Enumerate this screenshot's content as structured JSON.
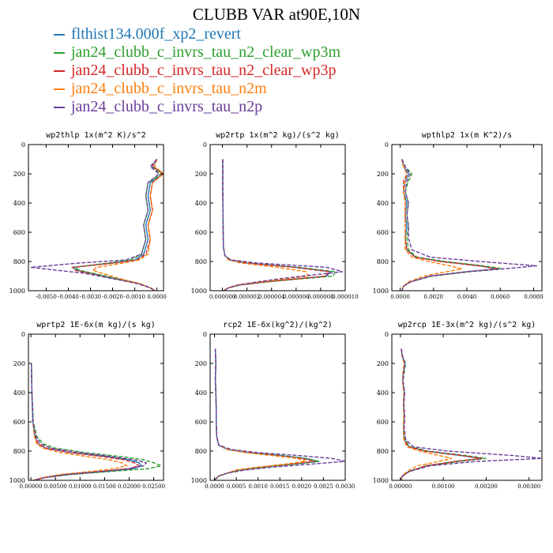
{
  "figure_title": "CLUBB VAR at90E,10N",
  "legend": [
    {
      "label": "flthist134.000f_xp2_revert",
      "color": "#1f77b4"
    },
    {
      "label": "jan24_clubb_c_invrs_tau_n2_clear_wp3m",
      "color": "#2ca02c"
    },
    {
      "label": "jan24_clubb_c_invrs_tau_n2_clear_wp3p",
      "color": "#d62728"
    },
    {
      "label": "jan24_clubb_c_invrs_tau_n2m",
      "color": "#ff7f0e"
    },
    {
      "label": "jan24_clubb_c_invrs_tau_n2p",
      "color": "#6a3d9a"
    }
  ],
  "chart_data": [
    {
      "type": "line",
      "title": "wp2thlp  1x(m^2 K)/s^2",
      "ylim": [
        0,
        1000
      ],
      "y_inverted": true,
      "xlim": [
        -0.0058,
        0.0003
      ],
      "x_ticks": [
        "-0.0050",
        "-0.0040",
        "-0.0030",
        "-0.0020",
        "-0.0010",
        "0.0000"
      ],
      "x_tick_values": [
        -0.005,
        -0.004,
        -0.003,
        -0.002,
        -0.001,
        0.0
      ],
      "y_ticks": [
        "0",
        "200",
        "400",
        "600",
        "800",
        "1000"
      ],
      "y": [
        100,
        150,
        200,
        260,
        350,
        450,
        550,
        650,
        750,
        790,
        810,
        840,
        860,
        880,
        920,
        950,
        980,
        1000
      ],
      "series": [
        {
          "name": "flthist134.000f_xp2_revert",
          "x": [
            0.0,
            -0.0002,
            0.0003,
            -0.0003,
            -0.0004,
            -0.0003,
            -0.0005,
            -0.0004,
            -0.0006,
            -0.001,
            -0.002,
            -0.0038,
            -0.0036,
            -0.003,
            -0.0018,
            -0.0008,
            -0.0003,
            -0.0001
          ]
        },
        {
          "name": "jan24_clubb_c_invrs_tau_n2_clear_wp3m",
          "x": [
            0.0,
            -0.0003,
            0.0002,
            -0.0004,
            -0.0005,
            -0.0004,
            -0.0006,
            -0.0005,
            -0.0007,
            -0.0012,
            -0.0022,
            -0.0037,
            -0.0035,
            -0.0029,
            -0.0017,
            -0.0008,
            -0.0003,
            -0.0001
          ]
        },
        {
          "name": "jan24_clubb_c_invrs_tau_n2_clear_wp3p",
          "x": [
            0.0,
            -0.0002,
            0.0003,
            -0.0002,
            -0.0003,
            -0.0002,
            -0.0004,
            -0.0003,
            -0.0005,
            -0.0009,
            -0.0019,
            -0.0038,
            -0.0037,
            -0.0031,
            -0.0019,
            -0.0009,
            -0.0003,
            -0.0001
          ]
        },
        {
          "name": "jan24_clubb_c_invrs_tau_n2m",
          "x": [
            0.0,
            -0.0001,
            0.0003,
            -0.0002,
            -0.0003,
            -0.0002,
            -0.0004,
            -0.0003,
            -0.0004,
            -0.0008,
            -0.0015,
            -0.0027,
            -0.0029,
            -0.0025,
            -0.0016,
            -0.0008,
            -0.0003,
            -0.0001
          ]
        },
        {
          "name": "jan24_clubb_c_invrs_tau_n2p",
          "x": [
            0.0,
            -0.0003,
            0.0001,
            -0.0004,
            -0.0005,
            -0.0004,
            -0.0006,
            -0.0005,
            -0.0007,
            -0.0014,
            -0.0035,
            -0.0057,
            -0.0045,
            -0.0033,
            -0.0019,
            -0.0009,
            -0.0003,
            -0.0001
          ]
        }
      ]
    },
    {
      "type": "line",
      "title": "wp2rtp  1x(m^2 kg)/(s^2 kg)",
      "ylim": [
        0,
        1000
      ],
      "y_inverted": true,
      "xlim": [
        -1e-06,
        1e-05
      ],
      "x_ticks": [
        "0.000000",
        "0.000002",
        "0.000004",
        "0.000006",
        "0.000008",
        "0.000010"
      ],
      "x_tick_values": [
        0.0,
        2e-06,
        4e-06,
        6e-06,
        8e-06,
        1e-05
      ],
      "y_ticks": [
        "0",
        "200",
        "400",
        "600",
        "800",
        "1000"
      ],
      "y": [
        100,
        200,
        300,
        400,
        500,
        600,
        700,
        760,
        790,
        810,
        840,
        870,
        900,
        920,
        940,
        960,
        980,
        1000
      ],
      "series": [
        {
          "name": "flthist134.000f_xp2_revert",
          "x": [
            2e-08,
            3e-08,
            2e-08,
            4e-08,
            5e-08,
            6e-08,
            8e-08,
            2e-07,
            6e-07,
            2e-06,
            6e-06,
            8.8e-06,
            8.5e-06,
            6e-06,
            3.5e-06,
            1.5e-06,
            5e-07,
            1e-07
          ]
        },
        {
          "name": "jan24_clubb_c_invrs_tau_n2_clear_wp3m",
          "x": [
            2e-08,
            3e-08,
            2e-08,
            4e-08,
            5e-08,
            6e-08,
            8e-08,
            2e-07,
            6e-07,
            2e-06,
            6.2e-06,
            9.2e-06,
            9e-06,
            6.2e-06,
            3.6e-06,
            1.5e-06,
            5e-07,
            1e-07
          ]
        },
        {
          "name": "jan24_clubb_c_invrs_tau_n2_clear_wp3p",
          "x": [
            2e-08,
            3e-08,
            2e-08,
            4e-08,
            5e-08,
            6e-08,
            8e-08,
            2e-07,
            6e-07,
            2e-06,
            5.8e-06,
            8.7e-06,
            8.4e-06,
            5.9e-06,
            3.4e-06,
            1.4e-06,
            5e-07,
            1e-07
          ]
        },
        {
          "name": "jan24_clubb_c_invrs_tau_n2m",
          "x": [
            2e-08,
            3e-08,
            2e-08,
            4e-08,
            5e-08,
            6e-08,
            8e-08,
            2e-07,
            5e-07,
            1.5e-06,
            4.5e-06,
            6.8e-06,
            7e-06,
            5e-06,
            3e-06,
            1.3e-06,
            5e-07,
            1e-07
          ]
        },
        {
          "name": "jan24_clubb_c_invrs_tau_n2p",
          "x": [
            2e-08,
            3e-08,
            2e-08,
            4e-08,
            5e-08,
            6e-08,
            8e-08,
            2e-07,
            7e-07,
            2.8e-06,
            8.5e-06,
            9.8e-06,
            6.5e-06,
            4.5e-06,
            2.8e-06,
            1.3e-06,
            5e-07,
            1e-07
          ]
        }
      ]
    },
    {
      "type": "line",
      "title": "wpthlp2  1x(m K^2)/s",
      "ylim": [
        0,
        1000
      ],
      "y_inverted": true,
      "xlim": [
        -0.0005,
        0.0085
      ],
      "x_ticks": [
        "0.0000",
        "0.0020",
        "0.0040",
        "0.0060",
        "0.0080"
      ],
      "x_tick_values": [
        0.0,
        0.002,
        0.004,
        0.006,
        0.008
      ],
      "y_ticks": [
        "0",
        "200",
        "400",
        "600",
        "800",
        "1000"
      ],
      "y": [
        100,
        150,
        200,
        250,
        320,
        400,
        480,
        560,
        640,
        720,
        770,
        800,
        830,
        850,
        870,
        900,
        940,
        970,
        1000
      ],
      "series": [
        {
          "name": "flthist134.000f_xp2_revert",
          "x": [
            0.0001,
            0.0002,
            0.0005,
            0.0003,
            0.0002,
            0.0004,
            0.0003,
            0.0004,
            0.0003,
            0.0004,
            0.0009,
            0.0025,
            0.0048,
            0.0058,
            0.004,
            0.0018,
            0.0006,
            0.0002,
            0.0001
          ]
        },
        {
          "name": "jan24_clubb_c_invrs_tau_n2_clear_wp3m",
          "x": [
            0.0001,
            0.0003,
            0.0007,
            0.0005,
            0.0003,
            0.0005,
            0.0004,
            0.0005,
            0.0004,
            0.0005,
            0.001,
            0.0027,
            0.005,
            0.0062,
            0.0042,
            0.0019,
            0.0006,
            0.0002,
            0.0001
          ]
        },
        {
          "name": "jan24_clubb_c_invrs_tau_n2_clear_wp3p",
          "x": [
            0.0001,
            0.0002,
            0.0004,
            0.0002,
            0.0002,
            0.0003,
            0.0003,
            0.0003,
            0.0003,
            0.0004,
            0.0009,
            0.0024,
            0.0047,
            0.0059,
            0.004,
            0.0018,
            0.0006,
            0.0002,
            0.0001
          ]
        },
        {
          "name": "jan24_clubb_c_invrs_tau_n2m",
          "x": [
            0.0001,
            0.0002,
            0.0004,
            0.0003,
            0.0002,
            0.0003,
            0.0003,
            0.0003,
            0.0003,
            0.0003,
            0.0007,
            0.0017,
            0.003,
            0.0037,
            0.0028,
            0.0014,
            0.0005,
            0.0002,
            0.0001
          ]
        },
        {
          "name": "jan24_clubb_c_invrs_tau_n2p",
          "x": [
            0.0001,
            0.0003,
            0.0006,
            0.0004,
            0.0003,
            0.0005,
            0.0004,
            0.0005,
            0.0005,
            0.0007,
            0.0018,
            0.0048,
            0.0082,
            0.0062,
            0.004,
            0.0018,
            0.0006,
            0.0002,
            0.0001
          ]
        }
      ]
    },
    {
      "type": "line",
      "title": "wprtp2  1E-6x(m kg)/(s kg)",
      "ylim": [
        0,
        1000
      ],
      "y_inverted": true,
      "xlim": [
        -0.0005,
        0.027
      ],
      "x_ticks": [
        "0.00000",
        "0.00500",
        "0.01000",
        "0.01500",
        "0.02000",
        "0.02500"
      ],
      "x_tick_values": [
        0.0,
        0.005,
        0.01,
        0.015,
        0.02,
        0.025
      ],
      "y_ticks": [
        "0",
        "200",
        "400",
        "600",
        "800",
        "1000"
      ],
      "y": [
        200,
        400,
        600,
        700,
        750,
        780,
        810,
        840,
        860,
        880,
        900,
        920,
        940,
        960,
        980,
        1000
      ],
      "series": [
        {
          "name": "flthist134.000f_xp2_revert",
          "x": [
            0.0001,
            0.0002,
            0.0004,
            0.0008,
            0.0015,
            0.003,
            0.008,
            0.016,
            0.02,
            0.022,
            0.0225,
            0.021,
            0.015,
            0.008,
            0.003,
            0.0005
          ]
        },
        {
          "name": "jan24_clubb_c_invrs_tau_n2_clear_wp3m",
          "x": [
            0.0001,
            0.0002,
            0.0005,
            0.0012,
            0.0025,
            0.005,
            0.011,
            0.019,
            0.023,
            0.025,
            0.0265,
            0.024,
            0.016,
            0.008,
            0.003,
            0.0005
          ]
        },
        {
          "name": "jan24_clubb_c_invrs_tau_n2_clear_wp3p",
          "x": [
            0.0001,
            0.0002,
            0.0004,
            0.0008,
            0.0015,
            0.003,
            0.008,
            0.015,
            0.019,
            0.021,
            0.022,
            0.02,
            0.014,
            0.007,
            0.003,
            0.0005
          ]
        },
        {
          "name": "jan24_clubb_c_invrs_tau_n2m",
          "x": [
            0.0001,
            0.0002,
            0.0004,
            0.0007,
            0.0012,
            0.0025,
            0.006,
            0.012,
            0.016,
            0.0185,
            0.0195,
            0.017,
            0.012,
            0.006,
            0.0025,
            0.0005
          ]
        },
        {
          "name": "jan24_clubb_c_invrs_tau_n2p",
          "x": [
            0.0001,
            0.0002,
            0.0004,
            0.001,
            0.002,
            0.004,
            0.01,
            0.017,
            0.021,
            0.0235,
            0.023,
            0.02,
            0.014,
            0.007,
            0.003,
            0.0005
          ]
        }
      ]
    },
    {
      "type": "line",
      "title": "rcp2  1E-6x(kg^2)/(kg^2)",
      "ylim": [
        0,
        1000
      ],
      "y_inverted": true,
      "xlim": [
        -0.0001,
        0.003
      ],
      "x_ticks": [
        "0.0000",
        "0.0005",
        "0.0010",
        "0.0015",
        "0.0020",
        "0.0025",
        "0.0030"
      ],
      "x_tick_values": [
        0.0,
        0.0005,
        0.001,
        0.0015,
        0.002,
        0.0025,
        0.003
      ],
      "y_ticks": [
        "0",
        "200",
        "400",
        "600",
        "800",
        "1000"
      ],
      "y": [
        100,
        200,
        300,
        400,
        500,
        600,
        700,
        760,
        790,
        810,
        830,
        850,
        870,
        890,
        910,
        930,
        950,
        970,
        990,
        1000
      ],
      "series": [
        {
          "name": "flthist134.000f_xp2_revert",
          "x": [
            2e-05,
            3e-05,
            2e-05,
            3e-05,
            4e-05,
            4e-05,
            5e-05,
            0.0001,
            0.0003,
            0.0008,
            0.0015,
            0.0021,
            0.0024,
            0.0018,
            0.0011,
            0.0006,
            0.0003,
            0.0001,
            3e-05,
            1e-05
          ]
        },
        {
          "name": "jan24_clubb_c_invrs_tau_n2_clear_wp3m",
          "x": [
            2e-05,
            3e-05,
            2e-05,
            3e-05,
            4e-05,
            4e-05,
            5e-05,
            0.0001,
            0.0003,
            0.0008,
            0.0015,
            0.0021,
            0.0024,
            0.0018,
            0.0011,
            0.0006,
            0.0003,
            0.0001,
            3e-05,
            1e-05
          ]
        },
        {
          "name": "jan24_clubb_c_invrs_tau_n2_clear_wp3p",
          "x": [
            2e-05,
            3e-05,
            2e-05,
            3e-05,
            4e-05,
            4e-05,
            5e-05,
            0.0001,
            0.0003,
            0.0008,
            0.0014,
            0.002,
            0.0023,
            0.0017,
            0.001,
            0.0005,
            0.0003,
            0.0001,
            3e-05,
            1e-05
          ]
        },
        {
          "name": "jan24_clubb_c_invrs_tau_n2m",
          "x": [
            2e-05,
            3e-05,
            2e-05,
            3e-05,
            4e-05,
            4e-05,
            5e-05,
            0.0001,
            0.0003,
            0.0007,
            0.0013,
            0.0019,
            0.0021,
            0.0016,
            0.001,
            0.0005,
            0.0003,
            0.0001,
            3e-05,
            1e-05
          ]
        },
        {
          "name": "jan24_clubb_c_invrs_tau_n2p",
          "x": [
            2e-05,
            3e-05,
            2e-05,
            3e-05,
            4e-05,
            4e-05,
            5e-05,
            0.0001,
            0.0004,
            0.001,
            0.0019,
            0.0027,
            0.003,
            0.0022,
            0.0013,
            0.0007,
            0.0003,
            0.0001,
            3e-05,
            1e-05
          ]
        }
      ]
    },
    {
      "type": "line",
      "title": "wp2rcp  1E-3x(m^2 kg)/(s^2 kg)",
      "ylim": [
        0,
        1000
      ],
      "y_inverted": true,
      "xlim": [
        -0.0002,
        0.0033
      ],
      "x_ticks": [
        "0.00000",
        "0.00100",
        "0.00200",
        "0.00300"
      ],
      "x_tick_values": [
        0.0,
        0.001,
        0.002,
        0.003
      ],
      "y_ticks": [
        "0",
        "200",
        "400",
        "600",
        "800",
        "1000"
      ],
      "y": [
        100,
        150,
        200,
        260,
        320,
        400,
        480,
        560,
        640,
        720,
        770,
        800,
        830,
        850,
        870,
        900,
        940,
        970,
        1000
      ],
      "series": [
        {
          "name": "flthist134.000f_xp2_revert",
          "x": [
            2e-05,
            4e-05,
            0.0001,
            7e-05,
            5e-05,
            9e-05,
            7e-05,
            9e-05,
            7e-05,
            9e-05,
            0.0002,
            0.0006,
            0.0014,
            0.0019,
            0.0013,
            0.0006,
            0.0002,
            5e-05,
            1e-05
          ]
        },
        {
          "name": "jan24_clubb_c_invrs_tau_n2_clear_wp3m",
          "x": [
            2e-05,
            5e-05,
            0.00012,
            9e-05,
            6e-05,
            0.0001,
            8e-05,
            0.0001,
            8e-05,
            0.0001,
            0.00022,
            0.00065,
            0.0015,
            0.002,
            0.0014,
            0.0006,
            0.0002,
            5e-05,
            1e-05
          ]
        },
        {
          "name": "jan24_clubb_c_invrs_tau_n2_clear_wp3p",
          "x": [
            2e-05,
            4e-05,
            9e-05,
            6e-05,
            5e-05,
            8e-05,
            7e-05,
            8e-05,
            7e-05,
            8e-05,
            0.00019,
            0.00058,
            0.0014,
            0.0019,
            0.0013,
            0.0006,
            0.0002,
            5e-05,
            1e-05
          ]
        },
        {
          "name": "jan24_clubb_c_invrs_tau_n2m",
          "x": [
            2e-05,
            4e-05,
            9e-05,
            6e-05,
            5e-05,
            8e-05,
            7e-05,
            8e-05,
            7e-05,
            8e-05,
            0.00015,
            0.00045,
            0.0009,
            0.0012,
            0.0009,
            0.0004,
            0.00015,
            4e-05,
            1e-05
          ]
        },
        {
          "name": "jan24_clubb_c_invrs_tau_n2p",
          "x": [
            2e-05,
            5e-05,
            0.00011,
            8e-05,
            6e-05,
            0.0001,
            8e-05,
            0.0001,
            9e-05,
            0.00012,
            0.0003,
            0.0011,
            0.0026,
            0.0033,
            0.0018,
            0.0007,
            0.0002,
            5e-05,
            1e-05
          ]
        }
      ]
    }
  ]
}
